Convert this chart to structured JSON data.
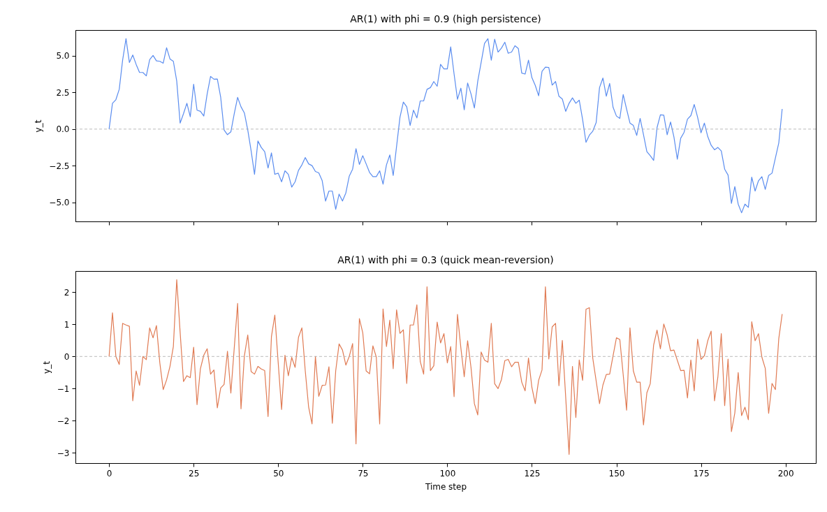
{
  "chart_data": [
    {
      "type": "line",
      "title": "AR(1) with phi = 0.9  (high persistence)",
      "ylabel": "y_t",
      "tick_labels": "y",
      "xlim": [
        -9.95,
        208.95
      ],
      "xticks": [
        0,
        25,
        50,
        75,
        100,
        125,
        150,
        175,
        200
      ],
      "ylim": [
        -6.29,
        6.75
      ],
      "yticks": [
        {
          "value": -5,
          "label": "−5.0"
        },
        {
          "value": -2.5,
          "label": "−2.5"
        },
        {
          "value": 0,
          "label": "0.0"
        },
        {
          "value": 2.5,
          "label": "2.5"
        },
        {
          "value": 5,
          "label": "5.0"
        }
      ],
      "ref_lines": [
        {
          "axis": "y",
          "value": 0,
          "color": "#aaaaaa",
          "line_style": "dashed"
        }
      ],
      "x": [
        0,
        1,
        2,
        3,
        4,
        5,
        6,
        7,
        8,
        9,
        10,
        11,
        12,
        13,
        14,
        15,
        16,
        17,
        18,
        19,
        20,
        21,
        22,
        23,
        24,
        25,
        26,
        27,
        28,
        29,
        30,
        31,
        32,
        33,
        34,
        35,
        36,
        37,
        38,
        39,
        40,
        41,
        42,
        43,
        44,
        45,
        46,
        47,
        48,
        49,
        50,
        51,
        52,
        53,
        54,
        55,
        56,
        57,
        58,
        59,
        60,
        61,
        62,
        63,
        64,
        65,
        66,
        67,
        68,
        69,
        70,
        71,
        72,
        73,
        74,
        75,
        76,
        77,
        78,
        79,
        80,
        81,
        82,
        83,
        84,
        85,
        86,
        87,
        88,
        89,
        90,
        91,
        92,
        93,
        94,
        95,
        96,
        97,
        98,
        99,
        100,
        101,
        102,
        103,
        104,
        105,
        106,
        107,
        108,
        109,
        110,
        111,
        112,
        113,
        114,
        115,
        116,
        117,
        118,
        119,
        120,
        121,
        122,
        123,
        124,
        125,
        126,
        127,
        128,
        129,
        130,
        131,
        132,
        133,
        134,
        135,
        136,
        137,
        138,
        139,
        140,
        141,
        142,
        143,
        144,
        145,
        146,
        147,
        148,
        149,
        150,
        151,
        152,
        153,
        154,
        155,
        156,
        157,
        158,
        159,
        160,
        161,
        162,
        163,
        164,
        165,
        166,
        167,
        168,
        169,
        170,
        171,
        172,
        173,
        174,
        175,
        176,
        177,
        178,
        179,
        180,
        181,
        182,
        183,
        184,
        185,
        186,
        187,
        188,
        189,
        190,
        191,
        192,
        193,
        194,
        195,
        196,
        197,
        198,
        199
      ],
      "series": [
        {
          "color": "#5b8def",
          "values": [
            0.0,
            1.76,
            2.0,
            2.71,
            4.7,
            6.16,
            4.54,
            5.05,
            4.41,
            3.86,
            3.86,
            3.63,
            4.73,
            5.02,
            4.65,
            4.62,
            4.49,
            5.54,
            4.78,
            4.62,
            3.27,
            0.41,
            1.05,
            1.76,
            0.84,
            3.06,
            1.29,
            1.21,
            0.89,
            2.4,
            3.59,
            3.4,
            3.41,
            2.16,
            -0.06,
            -0.38,
            -0.19,
            1.05,
            2.16,
            1.52,
            1.1,
            -0.06,
            -1.49,
            -3.08,
            -0.81,
            -1.25,
            -1.54,
            -2.65,
            -1.62,
            -3.08,
            -3.0,
            -3.59,
            -2.84,
            -3.08,
            -3.95,
            -3.59,
            -2.81,
            -2.44,
            -1.94,
            -2.37,
            -2.49,
            -2.89,
            -2.98,
            -3.51,
            -4.9,
            -4.22,
            -4.22,
            -5.46,
            -4.43,
            -4.9,
            -4.35,
            -3.21,
            -2.73,
            -1.33,
            -2.41,
            -1.81,
            -2.37,
            -2.95,
            -3.24,
            -3.24,
            -2.84,
            -3.75,
            -2.44,
            -1.76,
            -3.16,
            -1.17,
            0.81,
            1.84,
            1.52,
            0.25,
            1.29,
            0.76,
            1.92,
            1.92,
            2.71,
            2.83,
            3.24,
            2.92,
            4.41,
            4.1,
            4.1,
            5.6,
            3.75,
            2.03,
            2.79,
            1.32,
            3.14,
            2.4,
            1.44,
            3.27,
            4.54,
            5.84,
            6.16,
            4.7,
            6.13,
            5.25,
            5.52,
            5.92,
            5.17,
            5.25,
            5.68,
            5.49,
            3.82,
            3.75,
            4.7,
            3.51,
            2.98,
            2.27,
            3.94,
            4.22,
            4.2,
            3.0,
            3.24,
            2.24,
            2.05,
            1.21,
            1.76,
            2.13,
            1.76,
            1.97,
            0.65,
            -0.9,
            -0.41,
            -0.14,
            0.44,
            2.83,
            3.48,
            2.24,
            3.11,
            1.49,
            0.89,
            0.73,
            2.35,
            1.37,
            0.41,
            0.25,
            -0.43,
            0.73,
            -0.38,
            -1.54,
            -1.81,
            -2.13,
            0.1,
            0.97,
            0.95,
            -0.38,
            0.49,
            -0.54,
            -2.05,
            -0.62,
            -0.22,
            0.68,
            0.92,
            1.68,
            0.81,
            -0.25,
            0.41,
            -0.51,
            -1.1,
            -1.41,
            -1.25,
            -1.49,
            -2.73,
            -3.13,
            -5.06,
            -3.92,
            -5.11,
            -5.7,
            -5.11,
            -5.33,
            -3.27,
            -4.22,
            -3.52,
            -3.24,
            -4.11,
            -3.16,
            -3.0,
            -1.97,
            -0.94,
            1.37
          ]
        }
      ]
    },
    {
      "type": "line",
      "title": "AR(1) with phi = 0.3  (quick mean-reversion)",
      "xlabel": "Time step",
      "ylabel": "y_t",
      "xlim": [
        -9.95,
        208.95
      ],
      "xticks": [
        0,
        25,
        50,
        75,
        100,
        125,
        150,
        175,
        200
      ],
      "ylim": [
        -3.32,
        2.66
      ],
      "yticks": [
        {
          "value": -3,
          "label": "−3"
        },
        {
          "value": -2,
          "label": "−2"
        },
        {
          "value": -1,
          "label": "−1"
        },
        0,
        1,
        2
      ],
      "ref_lines": [
        {
          "axis": "y",
          "value": 0,
          "color": "#aaaaaa",
          "line_style": "dashed"
        }
      ],
      "x": [
        0,
        1,
        2,
        3,
        4,
        5,
        6,
        7,
        8,
        9,
        10,
        11,
        12,
        13,
        14,
        15,
        16,
        17,
        18,
        19,
        20,
        21,
        22,
        23,
        24,
        25,
        26,
        27,
        28,
        29,
        30,
        31,
        32,
        33,
        34,
        35,
        36,
        37,
        38,
        39,
        40,
        41,
        42,
        43,
        44,
        45,
        46,
        47,
        48,
        49,
        50,
        51,
        52,
        53,
        54,
        55,
        56,
        57,
        58,
        59,
        60,
        61,
        62,
        63,
        64,
        65,
        66,
        67,
        68,
        69,
        70,
        71,
        72,
        73,
        74,
        75,
        76,
        77,
        78,
        79,
        80,
        81,
        82,
        83,
        84,
        85,
        86,
        87,
        88,
        89,
        90,
        91,
        92,
        93,
        94,
        95,
        96,
        97,
        98,
        99,
        100,
        101,
        102,
        103,
        104,
        105,
        106,
        107,
        108,
        109,
        110,
        111,
        112,
        113,
        114,
        115,
        116,
        117,
        118,
        119,
        120,
        121,
        122,
        123,
        124,
        125,
        126,
        127,
        128,
        129,
        130,
        131,
        132,
        133,
        134,
        135,
        136,
        137,
        138,
        139,
        140,
        141,
        142,
        143,
        144,
        145,
        146,
        147,
        148,
        149,
        150,
        151,
        152,
        153,
        154,
        155,
        156,
        157,
        158,
        159,
        160,
        161,
        162,
        163,
        164,
        165,
        166,
        167,
        168,
        169,
        170,
        171,
        172,
        173,
        174,
        175,
        176,
        177,
        178,
        179,
        180,
        181,
        182,
        183,
        184,
        185,
        186,
        187,
        188,
        189,
        190,
        191,
        192,
        193,
        194,
        195,
        196,
        197,
        198,
        199
      ],
      "series": [
        {
          "color": "#e07b54",
          "values": [
            0.0,
            1.36,
            0.0,
            -0.25,
            1.03,
            0.98,
            0.94,
            -1.38,
            -0.45,
            -0.9,
            0.0,
            -0.1,
            0.89,
            0.58,
            0.96,
            -0.2,
            -1.03,
            -0.73,
            -0.31,
            0.31,
            2.39,
            0.76,
            -0.78,
            -0.6,
            -0.66,
            0.29,
            -1.5,
            -0.38,
            0.04,
            0.24,
            -0.55,
            -0.42,
            -1.6,
            -0.98,
            -0.87,
            0.16,
            -1.14,
            0.26,
            1.65,
            -1.63,
            0.02,
            0.67,
            -0.47,
            -0.55,
            -0.31,
            -0.39,
            -0.44,
            -1.87,
            0.62,
            1.29,
            -0.2,
            -1.65,
            0.04,
            -0.6,
            -0.03,
            -0.34,
            0.6,
            0.89,
            -0.45,
            -1.58,
            -2.1,
            0.0,
            -1.24,
            -0.9,
            -0.89,
            -0.32,
            -2.08,
            -0.45,
            0.39,
            0.2,
            -0.27,
            0.0,
            0.4,
            -2.72,
            1.18,
            0.74,
            -0.45,
            -0.54,
            0.33,
            -0.02,
            -2.1,
            1.48,
            0.31,
            1.13,
            -0.38,
            1.45,
            0.72,
            0.83,
            -0.84,
            0.98,
            0.98,
            1.61,
            -0.16,
            -0.55,
            2.17,
            -0.44,
            -0.29,
            1.07,
            0.42,
            0.71,
            -0.2,
            0.31,
            -1.25,
            1.31,
            0.27,
            -0.63,
            0.49,
            -0.34,
            -1.47,
            -1.82,
            0.14,
            -0.11,
            -0.18,
            1.03,
            -0.85,
            -1.0,
            -0.72,
            -0.13,
            -0.09,
            -0.32,
            -0.18,
            -0.18,
            -0.8,
            -1.07,
            -0.05,
            -0.96,
            -1.47,
            -0.74,
            -0.42,
            2.17,
            -0.08,
            0.92,
            1.03,
            -0.91,
            0.5,
            -1.27,
            -3.05,
            -0.31,
            -1.9,
            -0.11,
            -0.74,
            1.47,
            1.52,
            -0.05,
            -0.76,
            -1.47,
            -0.89,
            -0.56,
            -0.55,
            0.02,
            0.58,
            0.53,
            -0.57,
            -1.67,
            0.89,
            -0.45,
            -0.8,
            -0.8,
            -2.13,
            -1.13,
            -0.85,
            0.36,
            0.82,
            0.24,
            1.01,
            0.67,
            0.18,
            0.2,
            -0.12,
            -0.44,
            -0.43,
            -1.29,
            -0.11,
            -1.07,
            0.54,
            -0.09,
            0.02,
            0.49,
            0.79,
            -1.38,
            -0.63,
            0.71,
            -1.53,
            -0.08,
            -2.34,
            -1.76,
            -0.5,
            -1.84,
            -1.58,
            -1.97,
            1.08,
            0.49,
            0.71,
            -0.02,
            -0.37,
            -1.77,
            -0.84,
            -1.03,
            0.56,
            1.32
          ]
        }
      ]
    }
  ]
}
